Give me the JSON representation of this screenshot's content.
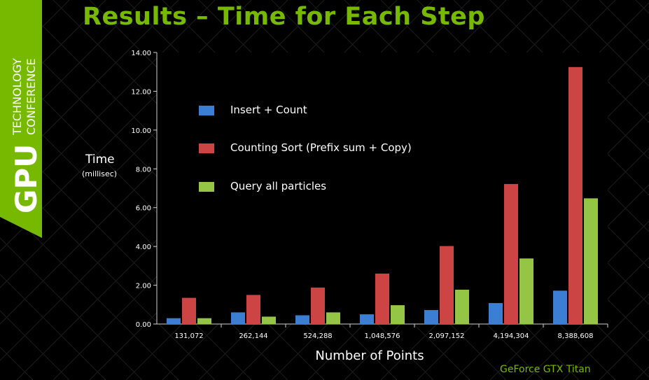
{
  "slide": {
    "title": "Results – Time for Each Step",
    "banner_big": "GPU",
    "banner_line1": "TECHNOLOGY",
    "banner_line2": "CONFERENCE",
    "footnote": "GeForce GTX Titan"
  },
  "colors": {
    "accent": "#76b900",
    "series": [
      "#3a7fd4",
      "#cc4444",
      "#95c544"
    ],
    "axis": "#d0d0d0"
  },
  "chart_data": {
    "type": "bar",
    "ylabel": "Time",
    "ylabel_sub": "(millisec)",
    "xlabel": "Number of Points",
    "ylim": [
      0,
      14
    ],
    "y_ticks": [
      "0.00",
      "2.00",
      "4.00",
      "6.00",
      "8.00",
      "10.00",
      "12.00",
      "14.00"
    ],
    "grid": false,
    "legend_position": "top-left",
    "categories": [
      "131,072",
      "262,144",
      "524,288",
      "1,048,576",
      "2,097,152",
      "4,194,304",
      "8,388,608"
    ],
    "series": [
      {
        "name": "Insert + Count",
        "values": [
          0.3,
          0.6,
          0.45,
          0.5,
          0.72,
          1.08,
          1.72
        ]
      },
      {
        "name": "Counting Sort (Prefix sum + Copy)",
        "values": [
          1.35,
          1.5,
          1.88,
          2.6,
          4.02,
          7.22,
          13.25
        ]
      },
      {
        "name": "Query all particles",
        "values": [
          0.3,
          0.38,
          0.6,
          0.97,
          1.77,
          3.38,
          6.48
        ]
      }
    ]
  }
}
